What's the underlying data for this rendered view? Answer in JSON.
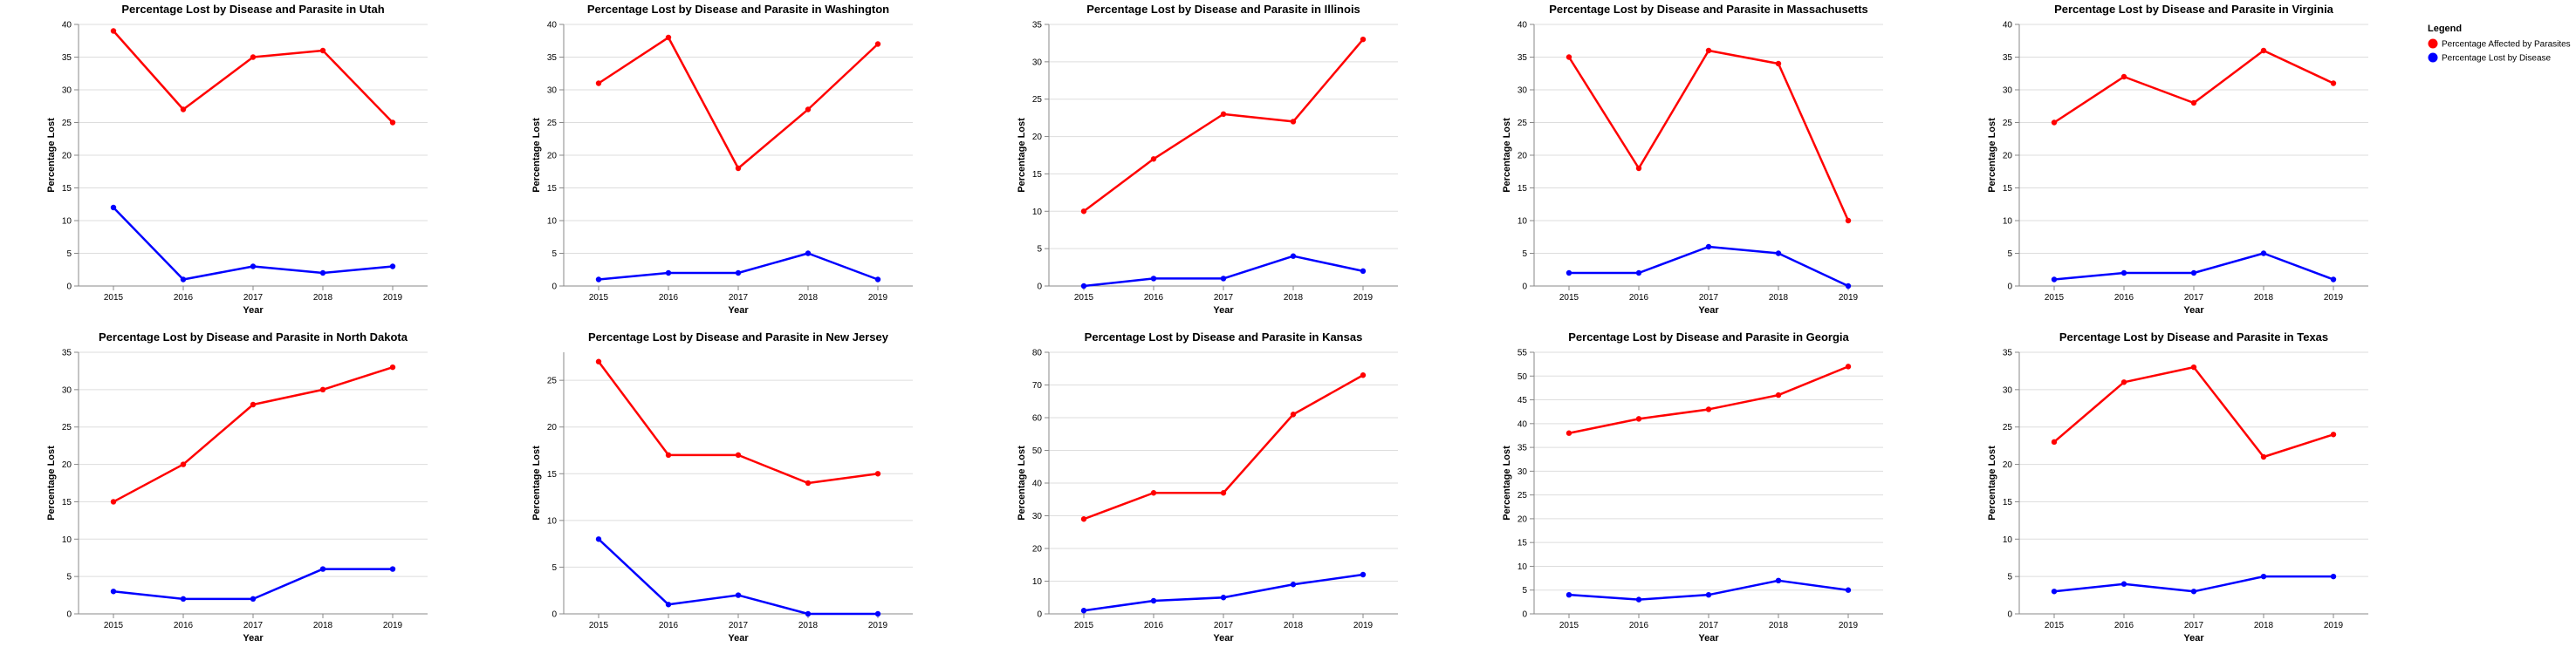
{
  "legend": {
    "title": "Legend",
    "items": [
      {
        "label": "Percentage Affected by Parasites",
        "color": "#ff0000"
      },
      {
        "label": "Percentage Lost by Disease",
        "color": "#0000ff"
      }
    ]
  },
  "chart_data": [
    {
      "type": "line",
      "title": "Percentage Lost by Disease and Parasite in Utah",
      "xlabel": "Year",
      "ylabel": "Percentage Lost",
      "categories": [
        "2015",
        "2016",
        "2017",
        "2018",
        "2019"
      ],
      "ylim": [
        0,
        40
      ],
      "yticks": [
        0,
        5,
        10,
        15,
        20,
        25,
        30,
        35,
        40
      ],
      "series": [
        {
          "name": "Percentage Affected by Parasites",
          "color": "#ff0000",
          "values": [
            39,
            27,
            35,
            36,
            25
          ]
        },
        {
          "name": "Percentage Lost by Disease",
          "color": "#0000ff",
          "values": [
            12,
            1,
            3,
            2,
            3
          ]
        }
      ]
    },
    {
      "type": "line",
      "title": "Percentage Lost by Disease and Parasite in Washington",
      "xlabel": "Year",
      "ylabel": "Percentage Lost",
      "categories": [
        "2015",
        "2016",
        "2017",
        "2018",
        "2019"
      ],
      "ylim": [
        0,
        40
      ],
      "yticks": [
        0,
        5,
        10,
        15,
        20,
        25,
        30,
        35,
        40
      ],
      "series": [
        {
          "name": "Percentage Affected by Parasites",
          "color": "#ff0000",
          "values": [
            31,
            38,
            18,
            27,
            37
          ]
        },
        {
          "name": "Percentage Lost by Disease",
          "color": "#0000ff",
          "values": [
            1,
            2,
            2,
            5,
            1
          ]
        }
      ]
    },
    {
      "type": "line",
      "title": "Percentage Lost by Disease and Parasite in Illinois",
      "xlabel": "Year",
      "ylabel": "Percentage Lost",
      "categories": [
        "2015",
        "2016",
        "2017",
        "2018",
        "2019"
      ],
      "ylim": [
        0,
        35
      ],
      "yticks": [
        0,
        5,
        10,
        15,
        20,
        25,
        30,
        35
      ],
      "series": [
        {
          "name": "Percentage Affected by Parasites",
          "color": "#ff0000",
          "values": [
            10,
            17,
            23,
            22,
            33
          ]
        },
        {
          "name": "Percentage Lost by Disease",
          "color": "#0000ff",
          "values": [
            0,
            1,
            1,
            4,
            2
          ]
        }
      ]
    },
    {
      "type": "line",
      "title": "Percentage Lost by Disease and Parasite in Massachusetts",
      "xlabel": "Year",
      "ylabel": "Percentage Lost",
      "categories": [
        "2015",
        "2016",
        "2017",
        "2018",
        "2019"
      ],
      "ylim": [
        0,
        40
      ],
      "yticks": [
        0,
        5,
        10,
        15,
        20,
        25,
        30,
        35,
        40
      ],
      "series": [
        {
          "name": "Percentage Affected by Parasites",
          "color": "#ff0000",
          "values": [
            35,
            18,
            36,
            34,
            10
          ]
        },
        {
          "name": "Percentage Lost by Disease",
          "color": "#0000ff",
          "values": [
            2,
            2,
            6,
            5,
            0
          ]
        }
      ]
    },
    {
      "type": "line",
      "title": "Percentage Lost by Disease and Parasite in Virginia",
      "xlabel": "Year",
      "ylabel": "Percentage Lost",
      "categories": [
        "2015",
        "2016",
        "2017",
        "2018",
        "2019"
      ],
      "ylim": [
        0,
        40
      ],
      "yticks": [
        0,
        5,
        10,
        15,
        20,
        25,
        30,
        35,
        40
      ],
      "series": [
        {
          "name": "Percentage Affected by Parasites",
          "color": "#ff0000",
          "values": [
            25,
            32,
            28,
            36,
            31
          ]
        },
        {
          "name": "Percentage Lost by Disease",
          "color": "#0000ff",
          "values": [
            1,
            2,
            2,
            5,
            1
          ]
        }
      ]
    },
    {
      "type": "line",
      "title": "Percentage Lost by Disease and Parasite in North Dakota",
      "xlabel": "Year",
      "ylabel": "Percentage Lost",
      "categories": [
        "2015",
        "2016",
        "2017",
        "2018",
        "2019"
      ],
      "ylim": [
        0,
        35
      ],
      "yticks": [
        0,
        5,
        10,
        15,
        20,
        25,
        30,
        35
      ],
      "series": [
        {
          "name": "Percentage Affected by Parasites",
          "color": "#ff0000",
          "values": [
            15,
            20,
            28,
            30,
            33
          ]
        },
        {
          "name": "Percentage Lost by Disease",
          "color": "#0000ff",
          "values": [
            3,
            2,
            2,
            6,
            6
          ]
        }
      ]
    },
    {
      "type": "line",
      "title": "Percentage Lost by Disease and Parasite in New Jersey",
      "xlabel": "Year",
      "ylabel": "Percentage Lost",
      "categories": [
        "2015",
        "2016",
        "2017",
        "2018",
        "2019"
      ],
      "ylim": [
        0,
        28
      ],
      "yticks": [
        0,
        5,
        10,
        15,
        20,
        25
      ],
      "series": [
        {
          "name": "Percentage Affected by Parasites",
          "color": "#ff0000",
          "values": [
            27,
            17,
            17,
            14,
            15
          ]
        },
        {
          "name": "Percentage Lost by Disease",
          "color": "#0000ff",
          "values": [
            8,
            1,
            2,
            0,
            0
          ]
        }
      ]
    },
    {
      "type": "line",
      "title": "Percentage Lost by Disease and Parasite in Kansas",
      "xlabel": "Year",
      "ylabel": "Percentage Lost",
      "categories": [
        "2015",
        "2016",
        "2017",
        "2018",
        "2019"
      ],
      "ylim": [
        0,
        80
      ],
      "yticks": [
        0,
        10,
        20,
        30,
        40,
        50,
        60,
        70,
        80
      ],
      "series": [
        {
          "name": "Percentage Affected by Parasites",
          "color": "#ff0000",
          "values": [
            29,
            37,
            37,
            61,
            73
          ]
        },
        {
          "name": "Percentage Lost by Disease",
          "color": "#0000ff",
          "values": [
            1,
            4,
            5,
            9,
            12
          ]
        }
      ]
    },
    {
      "type": "line",
      "title": "Percentage Lost by Disease and Parasite in Georgia",
      "xlabel": "Year",
      "ylabel": "Percentage Lost",
      "categories": [
        "2015",
        "2016",
        "2017",
        "2018",
        "2019"
      ],
      "ylim": [
        0,
        55
      ],
      "yticks": [
        0,
        5,
        10,
        15,
        20,
        25,
        30,
        35,
        40,
        45,
        50,
        55
      ],
      "series": [
        {
          "name": "Percentage Affected by Parasites",
          "color": "#ff0000",
          "values": [
            38,
            41,
            43,
            46,
            52
          ]
        },
        {
          "name": "Percentage Lost by Disease",
          "color": "#0000ff",
          "values": [
            4,
            3,
            4,
            7,
            5
          ]
        }
      ]
    },
    {
      "type": "line",
      "title": "Percentage Lost by Disease and Parasite in Texas",
      "xlabel": "Year",
      "ylabel": "Percentage Lost",
      "categories": [
        "2015",
        "2016",
        "2017",
        "2018",
        "2019"
      ],
      "ylim": [
        0,
        35
      ],
      "yticks": [
        0,
        5,
        10,
        15,
        20,
        25,
        30,
        35
      ],
      "series": [
        {
          "name": "Percentage Affected by Parasites",
          "color": "#ff0000",
          "values": [
            23,
            31,
            33,
            21,
            24
          ]
        },
        {
          "name": "Percentage Lost by Disease",
          "color": "#0000ff",
          "values": [
            3,
            4,
            3,
            5,
            5
          ]
        }
      ]
    }
  ]
}
